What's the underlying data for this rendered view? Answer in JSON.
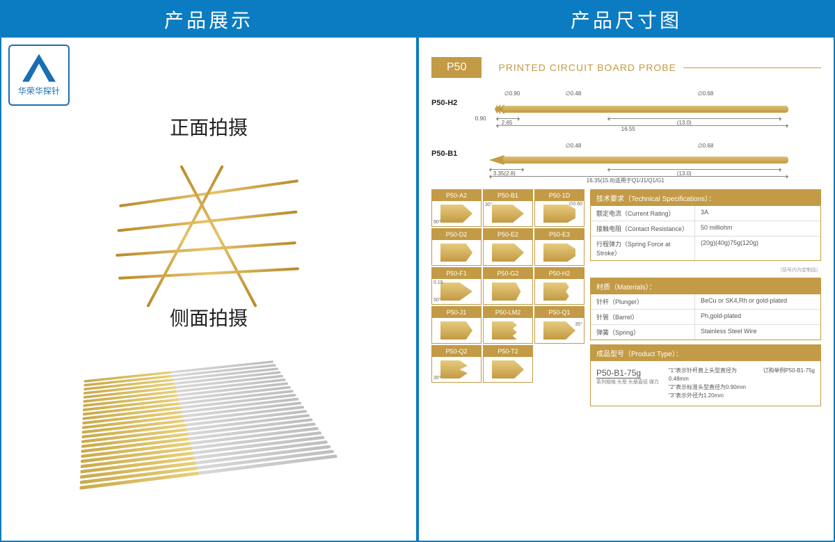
{
  "headers": {
    "left": "产品展示",
    "right": "产品尺寸图"
  },
  "logo": {
    "text": "华荣华探针"
  },
  "shots": {
    "front": "正面拍摄",
    "side": "侧面拍摄"
  },
  "p50": {
    "badge": "P50",
    "title": "PRINTED CIRCUIT BOARD  PROBE"
  },
  "diagrams": {
    "h2": {
      "label": "P50-H2",
      "dims": {
        "d_head": "∅0.90",
        "d_shaft1": "∅0.48",
        "d_shaft2": "∅0.68",
        "h_head": "0.90",
        "l_head": "2.65",
        "l_body": "(13.0)",
        "l_total": "16.55"
      }
    },
    "b1": {
      "label": "P50-B1",
      "dims": {
        "d_shaft1": "∅0.48",
        "d_shaft2": "∅0.68",
        "l_tip": "3.35(2.8)",
        "l_body": "(13.0)",
        "l_total": "16.35(15.8)适用于Q1/J1/Q1/G1"
      }
    }
  },
  "tips": [
    [
      "P50-A2",
      "P50-B1",
      "P50-1D"
    ],
    [
      "P50-D2",
      "P50-E2",
      "P50-E3"
    ],
    [
      "P50-F1",
      "P50-G2",
      "P50-H2"
    ],
    [
      "P50-J1",
      "P50-LM2",
      "P50-Q1"
    ],
    [
      "P50-Q2",
      "P50-T2",
      ""
    ]
  ],
  "tip_notes": {
    "a2_angle": "90°",
    "b1_angle": "30°",
    "1d_dia": "∅0.60",
    "f1_angle": "50°",
    "f1_dim": "0.15",
    "q1_angle": "35°",
    "q2_angle": "35°"
  },
  "specs": {
    "hdr": "技术要求（Technical Specifications）：",
    "rows": [
      {
        "k": "额定电流（Current Rating）",
        "v": "3A"
      },
      {
        "k": "接触电阻（Contact Resistance）",
        "v": "50 milliohm"
      },
      {
        "k": "行程弹力（Spring Force at Stroke）",
        "v": "(20g)(40g)75g(120g)"
      }
    ],
    "footnote": "（括号内为定制品）"
  },
  "materials": {
    "hdr": "材质（Materials）：",
    "rows": [
      {
        "k": "针杆（Plunger）",
        "v": "BeCu or SK4,Rh or gold-plated"
      },
      {
        "k": "针管（Barrel）",
        "v": "Ph,gold-plated"
      },
      {
        "k": "弹簧（Spring）",
        "v": "Stainless Steel Wire"
      }
    ]
  },
  "product_type": {
    "hdr": "成品型号（Product Type）：",
    "code": "P50-B1-75g",
    "sub": "系列规格 头型 头部直径 弹力",
    "notes": [
      "\"1\"表示针杆直上头型直径为0.48mm",
      "\"2\"表示标准头型直径为0.90mm",
      "\"3\"表示外径为1.20mm"
    ],
    "order": "订购举例P50-B1-75g"
  },
  "colors": {
    "blue": "#0b7cc1",
    "gold": "#c39a45",
    "gold_light": "#e6cb7d"
  }
}
